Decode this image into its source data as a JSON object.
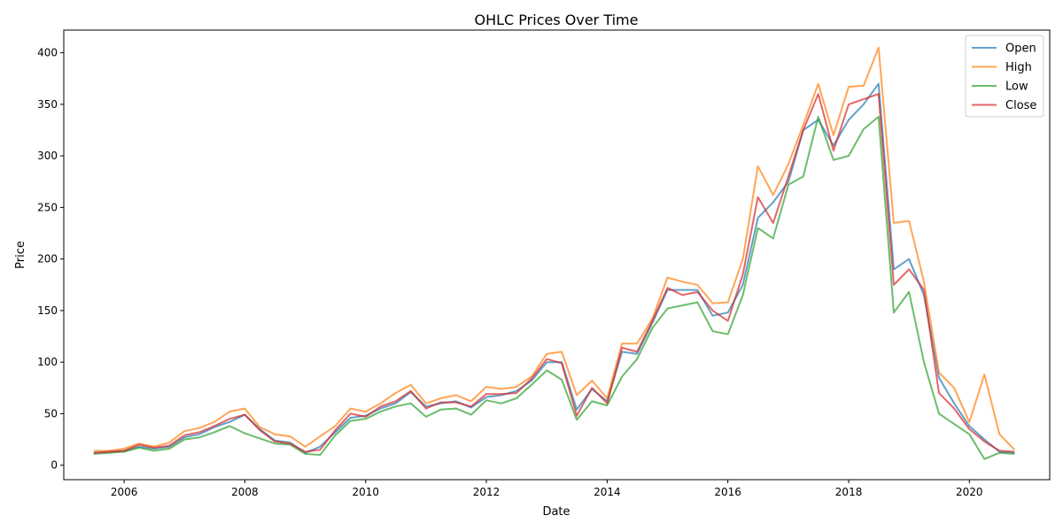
{
  "chart_data": {
    "type": "line",
    "title": "OHLC Prices Over Time",
    "xlabel": "Date",
    "ylabel": "Price",
    "xlim": [
      "2005-01-01",
      "2021-05-01"
    ],
    "ylim": [
      -14,
      422
    ],
    "grid": false,
    "legend_position": "top-right",
    "x_ticks": [
      "2006",
      "2008",
      "2010",
      "2012",
      "2014",
      "2016",
      "2018",
      "2020"
    ],
    "y_ticks": [
      0,
      50,
      100,
      150,
      200,
      250,
      300,
      350,
      400
    ],
    "series": [
      {
        "name": "Open",
        "color": "#1f77b4",
        "points": [
          [
            "2005-07-01",
            12
          ],
          [
            "2005-10-01",
            13
          ],
          [
            "2006-01-01",
            14
          ],
          [
            "2006-04-01",
            18
          ],
          [
            "2006-07-01",
            16
          ],
          [
            "2006-10-01",
            18
          ],
          [
            "2007-01-01",
            27
          ],
          [
            "2007-04-01",
            30
          ],
          [
            "2007-07-01",
            37
          ],
          [
            "2007-10-01",
            42
          ],
          [
            "2008-01-01",
            49
          ],
          [
            "2008-04-01",
            35
          ],
          [
            "2008-07-01",
            24
          ],
          [
            "2008-10-01",
            22
          ],
          [
            "2009-01-01",
            12
          ],
          [
            "2009-04-01",
            18
          ],
          [
            "2009-07-01",
            32
          ],
          [
            "2009-10-01",
            46
          ],
          [
            "2010-01-01",
            48
          ],
          [
            "2010-04-01",
            55
          ],
          [
            "2010-07-01",
            60
          ],
          [
            "2010-10-01",
            71
          ],
          [
            "2011-01-01",
            57
          ],
          [
            "2011-04-01",
            60
          ],
          [
            "2011-07-01",
            62
          ],
          [
            "2011-10-01",
            56
          ],
          [
            "2012-01-01",
            66
          ],
          [
            "2012-04-01",
            68
          ],
          [
            "2012-07-01",
            72
          ],
          [
            "2012-10-01",
            82
          ],
          [
            "2013-01-01",
            100
          ],
          [
            "2013-04-01",
            100
          ],
          [
            "2013-07-01",
            54
          ],
          [
            "2013-10-01",
            74
          ],
          [
            "2014-01-01",
            62
          ],
          [
            "2014-04-01",
            110
          ],
          [
            "2014-07-01",
            108
          ],
          [
            "2014-10-01",
            138
          ],
          [
            "2015-01-01",
            170
          ],
          [
            "2015-04-01",
            170
          ],
          [
            "2015-07-01",
            170
          ],
          [
            "2015-10-01",
            145
          ],
          [
            "2016-01-01",
            148
          ],
          [
            "2016-04-01",
            175
          ],
          [
            "2016-07-01",
            240
          ],
          [
            "2016-10-01",
            255
          ],
          [
            "2017-01-01",
            275
          ],
          [
            "2017-04-01",
            325
          ],
          [
            "2017-07-01",
            335
          ],
          [
            "2017-10-01",
            310
          ],
          [
            "2018-01-01",
            335
          ],
          [
            "2018-04-01",
            350
          ],
          [
            "2018-07-01",
            370
          ],
          [
            "2018-10-01",
            190
          ],
          [
            "2019-01-01",
            200
          ],
          [
            "2019-04-01",
            165
          ],
          [
            "2019-07-01",
            85
          ],
          [
            "2019-10-01",
            60
          ],
          [
            "2020-01-01",
            38
          ],
          [
            "2020-04-01",
            25
          ],
          [
            "2020-07-01",
            13
          ],
          [
            "2020-10-01",
            12
          ]
        ]
      },
      {
        "name": "High",
        "color": "#ff7f0e",
        "points": [
          [
            "2005-07-01",
            14
          ],
          [
            "2005-10-01",
            14
          ],
          [
            "2006-01-01",
            16
          ],
          [
            "2006-04-01",
            21
          ],
          [
            "2006-07-01",
            18
          ],
          [
            "2006-10-01",
            22
          ],
          [
            "2007-01-01",
            33
          ],
          [
            "2007-04-01",
            36
          ],
          [
            "2007-07-01",
            42
          ],
          [
            "2007-10-01",
            52
          ],
          [
            "2008-01-01",
            55
          ],
          [
            "2008-04-01",
            37
          ],
          [
            "2008-07-01",
            30
          ],
          [
            "2008-10-01",
            28
          ],
          [
            "2009-01-01",
            18
          ],
          [
            "2009-04-01",
            28
          ],
          [
            "2009-07-01",
            38
          ],
          [
            "2009-10-01",
            55
          ],
          [
            "2010-01-01",
            52
          ],
          [
            "2010-04-01",
            60
          ],
          [
            "2010-07-01",
            70
          ],
          [
            "2010-10-01",
            78
          ],
          [
            "2011-01-01",
            60
          ],
          [
            "2011-04-01",
            65
          ],
          [
            "2011-07-01",
            68
          ],
          [
            "2011-10-01",
            62
          ],
          [
            "2012-01-01",
            76
          ],
          [
            "2012-04-01",
            74
          ],
          [
            "2012-07-01",
            76
          ],
          [
            "2012-10-01",
            86
          ],
          [
            "2013-01-01",
            108
          ],
          [
            "2013-04-01",
            110
          ],
          [
            "2013-07-01",
            68
          ],
          [
            "2013-10-01",
            82
          ],
          [
            "2014-01-01",
            65
          ],
          [
            "2014-04-01",
            118
          ],
          [
            "2014-07-01",
            118
          ],
          [
            "2014-10-01",
            142
          ],
          [
            "2015-01-01",
            182
          ],
          [
            "2015-04-01",
            178
          ],
          [
            "2015-07-01",
            175
          ],
          [
            "2015-10-01",
            157
          ],
          [
            "2016-01-01",
            158
          ],
          [
            "2016-04-01",
            200
          ],
          [
            "2016-07-01",
            290
          ],
          [
            "2016-10-01",
            262
          ],
          [
            "2017-01-01",
            292
          ],
          [
            "2017-04-01",
            330
          ],
          [
            "2017-07-01",
            370
          ],
          [
            "2017-10-01",
            320
          ],
          [
            "2018-01-01",
            367
          ],
          [
            "2018-04-01",
            368
          ],
          [
            "2018-07-01",
            405
          ],
          [
            "2018-10-01",
            235
          ],
          [
            "2019-01-01",
            237
          ],
          [
            "2019-04-01",
            178
          ],
          [
            "2019-07-01",
            90
          ],
          [
            "2019-10-01",
            75
          ],
          [
            "2020-01-01",
            42
          ],
          [
            "2020-04-01",
            88
          ],
          [
            "2020-07-01",
            30
          ],
          [
            "2020-10-01",
            15
          ]
        ]
      },
      {
        "name": "Low",
        "color": "#2ca02c",
        "points": [
          [
            "2005-07-01",
            11
          ],
          [
            "2005-10-01",
            12
          ],
          [
            "2006-01-01",
            13
          ],
          [
            "2006-04-01",
            17
          ],
          [
            "2006-07-01",
            14
          ],
          [
            "2006-10-01",
            16
          ],
          [
            "2007-01-01",
            25
          ],
          [
            "2007-04-01",
            27
          ],
          [
            "2007-07-01",
            32
          ],
          [
            "2007-10-01",
            38
          ],
          [
            "2008-01-01",
            31
          ],
          [
            "2008-04-01",
            26
          ],
          [
            "2008-07-01",
            21
          ],
          [
            "2008-10-01",
            20
          ],
          [
            "2009-01-01",
            11
          ],
          [
            "2009-04-01",
            10
          ],
          [
            "2009-07-01",
            29
          ],
          [
            "2009-10-01",
            43
          ],
          [
            "2010-01-01",
            45
          ],
          [
            "2010-04-01",
            52
          ],
          [
            "2010-07-01",
            57
          ],
          [
            "2010-10-01",
            60
          ],
          [
            "2011-01-01",
            47
          ],
          [
            "2011-04-01",
            54
          ],
          [
            "2011-07-01",
            55
          ],
          [
            "2011-10-01",
            49
          ],
          [
            "2012-01-01",
            63
          ],
          [
            "2012-04-01",
            60
          ],
          [
            "2012-07-01",
            65
          ],
          [
            "2012-10-01",
            78
          ],
          [
            "2013-01-01",
            92
          ],
          [
            "2013-04-01",
            83
          ],
          [
            "2013-07-01",
            44
          ],
          [
            "2013-10-01",
            62
          ],
          [
            "2014-01-01",
            58
          ],
          [
            "2014-04-01",
            86
          ],
          [
            "2014-07-01",
            103
          ],
          [
            "2014-10-01",
            133
          ],
          [
            "2015-01-01",
            152
          ],
          [
            "2015-04-01",
            155
          ],
          [
            "2015-07-01",
            158
          ],
          [
            "2015-10-01",
            130
          ],
          [
            "2016-01-01",
            127
          ],
          [
            "2016-04-01",
            165
          ],
          [
            "2016-07-01",
            230
          ],
          [
            "2016-10-01",
            220
          ],
          [
            "2017-01-01",
            272
          ],
          [
            "2017-04-01",
            280
          ],
          [
            "2017-07-01",
            338
          ],
          [
            "2017-10-01",
            296
          ],
          [
            "2018-01-01",
            300
          ],
          [
            "2018-04-01",
            326
          ],
          [
            "2018-07-01",
            338
          ],
          [
            "2018-10-01",
            148
          ],
          [
            "2019-01-01",
            168
          ],
          [
            "2019-04-01",
            100
          ],
          [
            "2019-07-01",
            50
          ],
          [
            "2019-10-01",
            40
          ],
          [
            "2020-01-01",
            30
          ],
          [
            "2020-04-01",
            6
          ],
          [
            "2020-07-01",
            12
          ],
          [
            "2020-10-01",
            11
          ]
        ]
      },
      {
        "name": "Close",
        "color": "#d62728",
        "points": [
          [
            "2005-07-01",
            12
          ],
          [
            "2005-10-01",
            13
          ],
          [
            "2006-01-01",
            14
          ],
          [
            "2006-04-01",
            20
          ],
          [
            "2006-07-01",
            17
          ],
          [
            "2006-10-01",
            19
          ],
          [
            "2007-01-01",
            29
          ],
          [
            "2007-04-01",
            32
          ],
          [
            "2007-07-01",
            38
          ],
          [
            "2007-10-01",
            45
          ],
          [
            "2008-01-01",
            49
          ],
          [
            "2008-04-01",
            34
          ],
          [
            "2008-07-01",
            23
          ],
          [
            "2008-10-01",
            21
          ],
          [
            "2009-01-01",
            13
          ],
          [
            "2009-04-01",
            15
          ],
          [
            "2009-07-01",
            34
          ],
          [
            "2009-10-01",
            50
          ],
          [
            "2010-01-01",
            47
          ],
          [
            "2010-04-01",
            57
          ],
          [
            "2010-07-01",
            62
          ],
          [
            "2010-10-01",
            72
          ],
          [
            "2011-01-01",
            55
          ],
          [
            "2011-04-01",
            61
          ],
          [
            "2011-07-01",
            61
          ],
          [
            "2011-10-01",
            57
          ],
          [
            "2012-01-01",
            69
          ],
          [
            "2012-04-01",
            69
          ],
          [
            "2012-07-01",
            70
          ],
          [
            "2012-10-01",
            84
          ],
          [
            "2013-01-01",
            103
          ],
          [
            "2013-04-01",
            99
          ],
          [
            "2013-07-01",
            48
          ],
          [
            "2013-10-01",
            75
          ],
          [
            "2014-01-01",
            60
          ],
          [
            "2014-04-01",
            114
          ],
          [
            "2014-07-01",
            110
          ],
          [
            "2014-10-01",
            140
          ],
          [
            "2015-01-01",
            172
          ],
          [
            "2015-04-01",
            165
          ],
          [
            "2015-07-01",
            168
          ],
          [
            "2015-10-01",
            150
          ],
          [
            "2016-01-01",
            140
          ],
          [
            "2016-04-01",
            185
          ],
          [
            "2016-07-01",
            260
          ],
          [
            "2016-10-01",
            235
          ],
          [
            "2017-01-01",
            280
          ],
          [
            "2017-04-01",
            325
          ],
          [
            "2017-07-01",
            360
          ],
          [
            "2017-10-01",
            305
          ],
          [
            "2018-01-01",
            350
          ],
          [
            "2018-04-01",
            355
          ],
          [
            "2018-07-01",
            360
          ],
          [
            "2018-10-01",
            175
          ],
          [
            "2019-01-01",
            190
          ],
          [
            "2019-04-01",
            170
          ],
          [
            "2019-07-01",
            70
          ],
          [
            "2019-10-01",
            55
          ],
          [
            "2020-01-01",
            35
          ],
          [
            "2020-04-01",
            23
          ],
          [
            "2020-07-01",
            14
          ],
          [
            "2020-10-01",
            13
          ]
        ]
      }
    ]
  }
}
